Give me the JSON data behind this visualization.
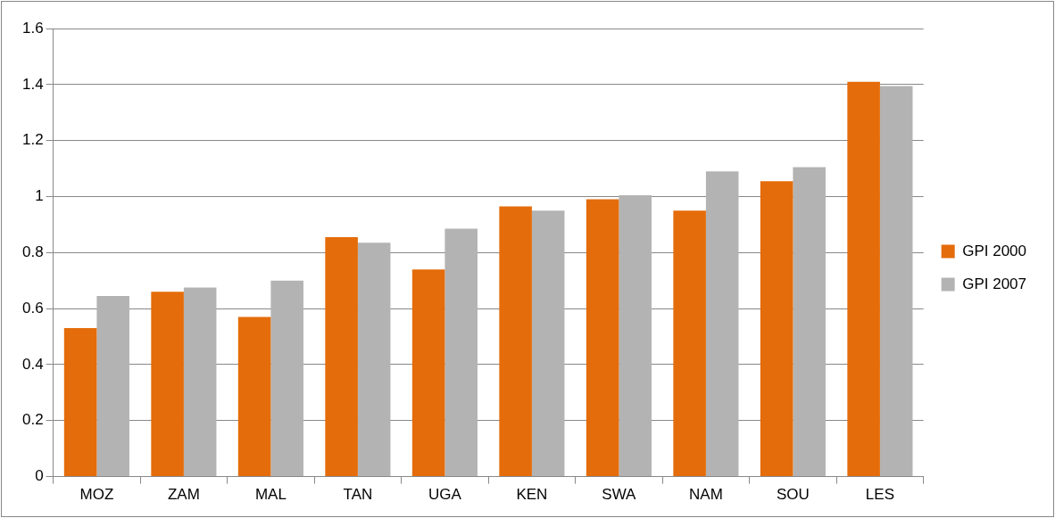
{
  "chart_data": {
    "type": "bar",
    "categories": [
      "MOZ",
      "ZAM",
      "MAL",
      "TAN",
      "UGA",
      "KEN",
      "SWA",
      "NAM",
      "SOU",
      "LES"
    ],
    "series": [
      {
        "name": "GPI 2000",
        "color": "#e46c0a",
        "values": [
          0.53,
          0.66,
          0.57,
          0.855,
          0.74,
          0.965,
          0.99,
          0.95,
          1.055,
          1.41
        ]
      },
      {
        "name": "GPI 2007",
        "color": "#b3b3b3",
        "values": [
          0.645,
          0.675,
          0.7,
          0.835,
          0.885,
          0.95,
          1.005,
          1.09,
          1.105,
          1.395
        ]
      }
    ],
    "ylim": [
      0,
      1.6
    ],
    "yticks": [
      0,
      0.2,
      0.4,
      0.6,
      0.8,
      1,
      1.2,
      1.4,
      1.6
    ],
    "grid": "y",
    "legend": "right"
  }
}
